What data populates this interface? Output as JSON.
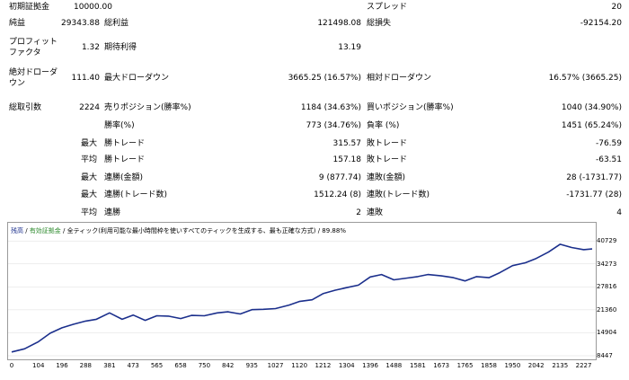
{
  "report": {
    "initial_deposit_label": "初期証拠金",
    "initial_deposit_value": "10000.00",
    "spread_label": "スプレッド",
    "spread_value": "20",
    "net_profit_label": "純益",
    "net_profit_value": "29343.88",
    "gross_profit_label": "総利益",
    "gross_profit_value": "121498.08",
    "gross_loss_label": "総損失",
    "gross_loss_value": "-92154.20",
    "profit_factor_label_1": "プロフィット",
    "profit_factor_label_2": "ファクタ",
    "profit_factor_value": "1.32",
    "expected_payoff_label": "期待利得",
    "expected_payoff_value": "13.19",
    "abs_drawdown_label_1": "絶対ドローダ",
    "abs_drawdown_label_2": "ウン",
    "abs_drawdown_value": "111.40",
    "max_drawdown_label": "最大ドローダウン",
    "max_drawdown_value": "3665.25 (16.57%)",
    "rel_drawdown_label": "相対ドローダウン",
    "rel_drawdown_value": "16.57% (3665.25)",
    "total_trades_label": "総取引数",
    "total_trades_value": "2224",
    "short_label": "売りポジション(勝率%)",
    "short_value": "1184 (34.63%)",
    "long_label": "買いポジション(勝率%)",
    "long_value": "1040 (34.90%)",
    "win_rate_label": "勝率(%)",
    "win_rate_value": "773 (34.76%)",
    "loss_rate_label": "負率 (%)",
    "loss_rate_value": "1451 (65.24%)",
    "max_prefix": "最大",
    "avg_prefix": "平均",
    "largest_win_label": "勝トレード",
    "largest_win_value": "315.57",
    "largest_loss_label": "敗トレード",
    "largest_loss_value": "-76.59",
    "avg_win_label": "勝トレード",
    "avg_win_value": "157.18",
    "avg_loss_label": "敗トレード",
    "avg_loss_value": "-63.51",
    "max_consec_wins_label": "連勝(金額)",
    "max_consec_wins_value": "9 (877.74)",
    "max_consec_losses_label": "連敗(金額)",
    "max_consec_losses_value": "28 (-1731.77)",
    "max_consec_profit_label": "連勝(トレード数)",
    "max_consec_profit_value": "1512.24 (8)",
    "max_consec_loss_label": "連敗(トレード数)",
    "max_consec_loss_value": "-1731.77 (28)",
    "avg_consec_wins_label": "連勝",
    "avg_consec_wins_value": "2",
    "avg_consec_losses_label": "連敗",
    "avg_consec_losses_value": "4"
  },
  "legend": {
    "balance": "残高",
    "sep1": " / ",
    "equity": "有効証拠金",
    "sep2": " / ",
    "model": "全ティック(利用可能な最小時間枠を使いすべてのティックを生成する、最も正確な方式)",
    "sep3": " / ",
    "quality": "89.88%"
  },
  "colors": {
    "balance_line": "#1b2f8c",
    "equity_line": "#2c8a2c",
    "grid": "#dcdcdc"
  },
  "chart_data": {
    "type": "line",
    "series": [
      {
        "name": "残高",
        "x": [
          0,
          50,
          104,
          150,
          196,
          240,
          288,
          330,
          381,
          430,
          473,
          520,
          565,
          610,
          658,
          700,
          750,
          800,
          842,
          890,
          935,
          980,
          1027,
          1080,
          1120,
          1170,
          1212,
          1260,
          1304,
          1350,
          1396,
          1440,
          1488,
          1540,
          1581,
          1620,
          1673,
          1720,
          1765,
          1810,
          1858,
          1900,
          1950,
          2000,
          2042,
          2090,
          2135,
          2180,
          2227,
          2260
        ],
        "values": [
          9500,
          10400,
          12400,
          14800,
          16300,
          17300,
          18200,
          18700,
          20500,
          18700,
          19900,
          18400,
          19700,
          19600,
          18900,
          19800,
          19700,
          20500,
          20800,
          20200,
          21400,
          21500,
          21700,
          22700,
          23700,
          24200,
          25900,
          26900,
          27600,
          28300,
          30600,
          31300,
          29800,
          30300,
          30700,
          31300,
          30900,
          30400,
          29500,
          30700,
          30400,
          31800,
          33800,
          34600,
          35800,
          37600,
          39800,
          38900,
          38300,
          38500
        ]
      }
    ],
    "xlim": [
      0,
      2260
    ],
    "ylim": [
      8447,
      41800
    ],
    "x_ticks": [
      "0",
      "104",
      "196",
      "288",
      "381",
      "473",
      "565",
      "658",
      "750",
      "842",
      "935",
      "1027",
      "1120",
      "1212",
      "1304",
      "1396",
      "1488",
      "1581",
      "1673",
      "1765",
      "1858",
      "1950",
      "2042",
      "2135",
      "2227"
    ],
    "y_ticks": [
      "40729",
      "34273",
      "27816",
      "21360",
      "14904",
      "8447"
    ],
    "grid": true
  }
}
